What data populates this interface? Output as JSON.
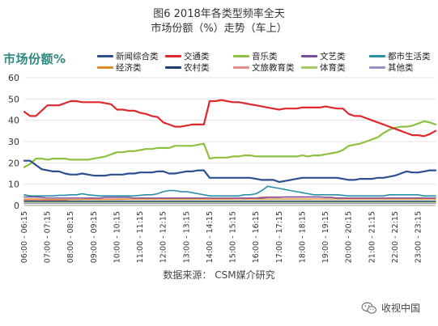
{
  "chart_data": {
    "type": "line",
    "title_line1": "图6  2018年各类型频率全天",
    "title_line2": "市场份额（%）走势（车上）",
    "ylabel": "市场份额%",
    "ylim": [
      0,
      60
    ],
    "yticks": [
      0,
      10,
      20,
      30,
      40,
      50,
      60
    ],
    "grid": true,
    "legend_placement": "top",
    "x": [
      "06:00",
      "06:15",
      "06:30",
      "06:45",
      "07:00",
      "07:15",
      "07:30",
      "07:45",
      "08:00",
      "08:15",
      "08:30",
      "08:45",
      "09:00",
      "09:15",
      "09:30",
      "09:45",
      "10:00",
      "10:15",
      "10:30",
      "10:45",
      "11:00",
      "11:15",
      "11:30",
      "11:45",
      "12:00",
      "12:15",
      "12:30",
      "12:45",
      "13:00",
      "13:15",
      "13:30",
      "13:45",
      "14:00",
      "14:15",
      "14:30",
      "14:45",
      "15:00",
      "15:15",
      "15:30",
      "15:45",
      "16:00",
      "16:15",
      "16:30",
      "16:45",
      "17:00",
      "17:15",
      "17:30",
      "17:45",
      "18:00",
      "18:15",
      "18:30",
      "18:45",
      "19:00",
      "19:15",
      "19:30",
      "19:45",
      "20:00",
      "20:15",
      "20:30",
      "20:45",
      "21:00",
      "21:15",
      "21:30",
      "21:45",
      "22:00",
      "22:15",
      "22:30",
      "22:45",
      "23:00",
      "23:15",
      "23:30",
      "23:45"
    ],
    "xticks": [
      "06:00 - 06:15",
      "07:00 - 07:15",
      "08:00 - 08:15",
      "09:00 - 09:15",
      "10:00 - 10:15",
      "11:00 - 11:15",
      "12:00 - 12:15",
      "13:00 - 13:15",
      "14:00 - 14:15",
      "15:00 - 15:15",
      "16:00 - 16:15",
      "17:00 - 17:15",
      "18:00 - 18:15",
      "19:00 - 19:15",
      "20:00 - 20:15",
      "21:00 - 21:15",
      "22:00 - 22:15",
      "23:00 - 23:15"
    ],
    "series": [
      {
        "name": "新闻综合类",
        "color": "#2b4f8e",
        "width": 2.2,
        "values": [
          21,
          21,
          19,
          17,
          16.5,
          16,
          16,
          15,
          14.5,
          14.5,
          15,
          14.5,
          14,
          14,
          14,
          14.5,
          14.5,
          14.5,
          15,
          15,
          15.5,
          15.5,
          15.5,
          16,
          16,
          15,
          15,
          15.5,
          16,
          16,
          16.5,
          16.5,
          13,
          13,
          13,
          13,
          13,
          13,
          13,
          13,
          12.5,
          12,
          12,
          12,
          11,
          11.5,
          12,
          12.5,
          13,
          13,
          13,
          13,
          13,
          13,
          13,
          12.5,
          12,
          12,
          12.5,
          12.5,
          12.5,
          13,
          13,
          13.5,
          14,
          15,
          16,
          15.5,
          15.5,
          16,
          16.5,
          16.5
        ]
      },
      {
        "name": "交通类",
        "color": "#e0272c",
        "width": 2.2,
        "values": [
          44,
          42,
          42,
          44.5,
          47,
          47,
          47,
          48,
          49,
          49,
          48.5,
          48.5,
          48.5,
          48.5,
          48,
          47.5,
          45,
          45,
          44.5,
          44.5,
          43.5,
          43,
          42,
          41.5,
          39,
          38,
          37,
          37,
          37.5,
          38,
          38,
          38,
          49,
          49,
          49.5,
          49,
          48.5,
          48.5,
          48,
          47.5,
          47,
          46.5,
          46,
          45.5,
          45,
          45.5,
          45.5,
          45.5,
          46,
          46,
          46,
          46,
          46.5,
          46,
          45.5,
          45.5,
          43,
          42,
          42,
          41,
          40,
          39,
          38,
          37,
          36,
          35,
          34,
          33,
          33,
          32.5,
          33.5,
          35
        ]
      },
      {
        "name": "音乐类",
        "color": "#8dc03f",
        "width": 2.2,
        "values": [
          18,
          19.5,
          22,
          22,
          21.5,
          22,
          22,
          22,
          21.5,
          21.5,
          21.5,
          21.5,
          22,
          22.5,
          23,
          24,
          25,
          25,
          25.5,
          25.5,
          26,
          26.5,
          26.5,
          27,
          27,
          27,
          28,
          28,
          28,
          28,
          28.5,
          29,
          22,
          22.5,
          22.5,
          22.5,
          23,
          23,
          23.5,
          23.5,
          23,
          23,
          23,
          23,
          23,
          23,
          23,
          23,
          23.5,
          23,
          23.5,
          23.5,
          24,
          24.5,
          25,
          26,
          28,
          28.5,
          29,
          30,
          31,
          32,
          34,
          35.5,
          36.5,
          37,
          37,
          37.5,
          38.5,
          39.5,
          39,
          38
        ]
      },
      {
        "name": "文艺类",
        "color": "#7b4c9e",
        "width": 1.4,
        "values": [
          4,
          4,
          4,
          3.8,
          3.5,
          3.5,
          3.5,
          3.5,
          3.5,
          3.5,
          3.5,
          3.5,
          3.5,
          3.5,
          3.8,
          3.8,
          3.8,
          3.8,
          3.8,
          3.5,
          3.5,
          3.5,
          3.5,
          3.5,
          3.5,
          3.5,
          3.5,
          3.5,
          3.5,
          3.5,
          3.5,
          3.5,
          3.5,
          3.5,
          3.5,
          3.5,
          3.5,
          3.5,
          3.5,
          3.5,
          3.5,
          3.5,
          3.8,
          3.8,
          3.8,
          4,
          4,
          4,
          4,
          4,
          4,
          4,
          3.8,
          3.8,
          3.5,
          3.5,
          3.5,
          3.5,
          3.5,
          3.5,
          3.5,
          3.5,
          3.5,
          3.5,
          3.5,
          3.5,
          3.5,
          3.5,
          3.5,
          3.5,
          3.5,
          3.5
        ]
      },
      {
        "name": "都市生活类",
        "color": "#2a8fa3",
        "width": 1.6,
        "values": [
          5,
          4.5,
          4.5,
          4.5,
          4.5,
          4.5,
          4.8,
          4.8,
          5,
          5,
          5.5,
          5,
          4.8,
          4.5,
          4.5,
          4.5,
          4.5,
          4.5,
          4.5,
          4.5,
          4.8,
          5,
          5,
          5.5,
          6.5,
          7,
          7,
          6.5,
          6.5,
          6,
          5.5,
          5,
          4.5,
          4.5,
          4.5,
          4.5,
          4.5,
          4.5,
          5,
          5,
          5.5,
          7,
          9,
          8.5,
          8,
          7.5,
          7,
          6.5,
          6,
          5.5,
          5,
          5,
          5,
          5,
          5,
          4.8,
          4.5,
          4.5,
          4.5,
          4.5,
          4.5,
          4.5,
          4.5,
          5,
          5,
          5,
          5,
          5,
          5,
          4.5,
          4.5,
          4.5
        ]
      },
      {
        "name": "经济类",
        "color": "#e08a2c",
        "width": 1.4,
        "values": [
          3,
          3,
          3,
          3,
          2.8,
          2.8,
          2.8,
          2.8,
          2.8,
          2.8,
          2.8,
          2.8,
          2.8,
          2.8,
          2.8,
          2.8,
          2.8,
          2.8,
          3,
          3,
          3,
          3,
          3,
          3,
          3,
          3,
          3,
          3,
          3,
          3,
          3,
          3,
          3,
          3,
          3,
          3,
          3,
          3,
          3,
          3,
          3,
          3,
          3,
          3,
          3,
          3,
          3,
          3,
          3,
          3,
          3,
          3,
          3,
          3,
          3,
          3,
          3,
          3,
          3,
          3,
          3,
          3,
          3,
          3,
          3,
          3,
          3,
          3,
          3,
          3,
          3,
          3
        ]
      },
      {
        "name": "农村类",
        "color": "#1f3d6e",
        "width": 1.4,
        "values": [
          2,
          2,
          2,
          2,
          2,
          2,
          2,
          2,
          2,
          2,
          2,
          2,
          2,
          2,
          2,
          2,
          2,
          2,
          2,
          2,
          2,
          2,
          2,
          2,
          2,
          2,
          2,
          2,
          2,
          2,
          2,
          2,
          2,
          2,
          2,
          2,
          2,
          2,
          2,
          2,
          2,
          2,
          2,
          2,
          2,
          2,
          2,
          2,
          2,
          2,
          2,
          2,
          2,
          2,
          2,
          2,
          2,
          2,
          2,
          2,
          2,
          2,
          2,
          2,
          2,
          2,
          2,
          2,
          2,
          2,
          2,
          2
        ]
      },
      {
        "name": "文旅教育类",
        "color": "#e88b8b",
        "width": 1.4,
        "values": [
          2.5,
          2.5,
          2.5,
          2.5,
          2.5,
          2.5,
          2.5,
          2.5,
          2.8,
          2.8,
          2.8,
          3,
          3,
          3,
          3,
          3,
          3,
          3,
          3,
          3,
          3,
          3,
          3,
          3,
          3,
          3,
          3,
          3,
          3,
          3,
          3,
          3,
          3,
          3,
          3,
          3,
          3,
          3.5,
          3.5,
          3.5,
          3.5,
          4,
          4,
          4,
          4,
          4,
          4,
          4,
          4,
          4,
          4,
          4,
          3.8,
          3.8,
          3.5,
          3.5,
          3.5,
          3.5,
          3.5,
          3.5,
          3.5,
          3.5,
          3.5,
          3.5,
          3.5,
          3.5,
          3.5,
          3.5,
          3.5,
          3.5,
          3.5,
          3.5
        ]
      },
      {
        "name": "体育类",
        "color": "#a8c96a",
        "width": 1.4,
        "values": [
          1.5,
          1.5,
          1.5,
          1.5,
          1.5,
          1.5,
          1.5,
          1.5,
          1.5,
          1.5,
          1.5,
          1.5,
          1.5,
          1.5,
          1.5,
          1.5,
          1.5,
          1.5,
          1.5,
          1.5,
          1.5,
          1.5,
          1.5,
          1.5,
          1.5,
          1.5,
          1.5,
          1.5,
          1.5,
          1.5,
          1.5,
          1.5,
          1.5,
          1.5,
          1.5,
          1.5,
          1.5,
          1.5,
          1.5,
          1.5,
          1.5,
          1.5,
          1.5,
          1.5,
          1.5,
          1.5,
          1.5,
          1.5,
          1.5,
          1.5,
          1.5,
          1.5,
          1.5,
          1.5,
          1.5,
          1.5,
          1.5,
          1.5,
          1.5,
          1.5,
          1.5,
          1.5,
          1.5,
          1.5,
          1.5,
          1.5,
          1.5,
          1.5,
          1.5,
          1.5,
          1.5,
          1.5
        ]
      },
      {
        "name": "其他类",
        "color": "#9a8fc9",
        "width": 1.4,
        "values": [
          1,
          1,
          1,
          1,
          1,
          1,
          1,
          1,
          1,
          1,
          1,
          1,
          1,
          1,
          1,
          1,
          1,
          1,
          1,
          1,
          1,
          1,
          1,
          1,
          1,
          1,
          1,
          1,
          1,
          1,
          1,
          1,
          1,
          1,
          1,
          1,
          1,
          1,
          1,
          1,
          1,
          1,
          1,
          1,
          1,
          1,
          1,
          1,
          1,
          1,
          1,
          1,
          1,
          1,
          1,
          1,
          1,
          1,
          1,
          1,
          1,
          1,
          1,
          1,
          1,
          1,
          1,
          1,
          1,
          1,
          1,
          1
        ]
      }
    ]
  },
  "source": "数据来源：  CSM媒介研究",
  "watermark": {
    "text": "收视中国",
    "icon": "wechat-icon"
  }
}
